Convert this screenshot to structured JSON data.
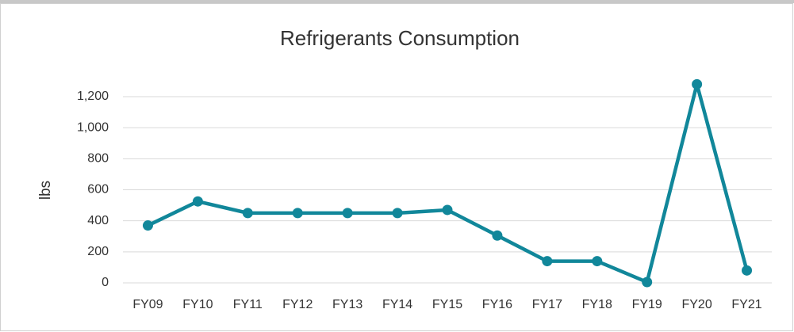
{
  "chart_data": {
    "type": "line",
    "title": "Refrigerants Consumption",
    "y_label": "lbs",
    "categories": [
      "FY09",
      "FY10",
      "FY11",
      "FY12",
      "FY13",
      "FY14",
      "FY15",
      "FY16",
      "FY17",
      "FY18",
      "FY19",
      "FY20",
      "FY21"
    ],
    "values": [
      370,
      525,
      450,
      450,
      450,
      450,
      470,
      305,
      140,
      140,
      5,
      1280,
      80
    ],
    "color": "#11879a",
    "ylim": [
      0,
      1200
    ],
    "yticks": [
      0,
      200,
      400,
      600,
      800,
      {
        "value": 1000,
        "label": "1,000"
      },
      {
        "value": 1200,
        "label": "1,200"
      }
    ],
    "grid": true
  }
}
